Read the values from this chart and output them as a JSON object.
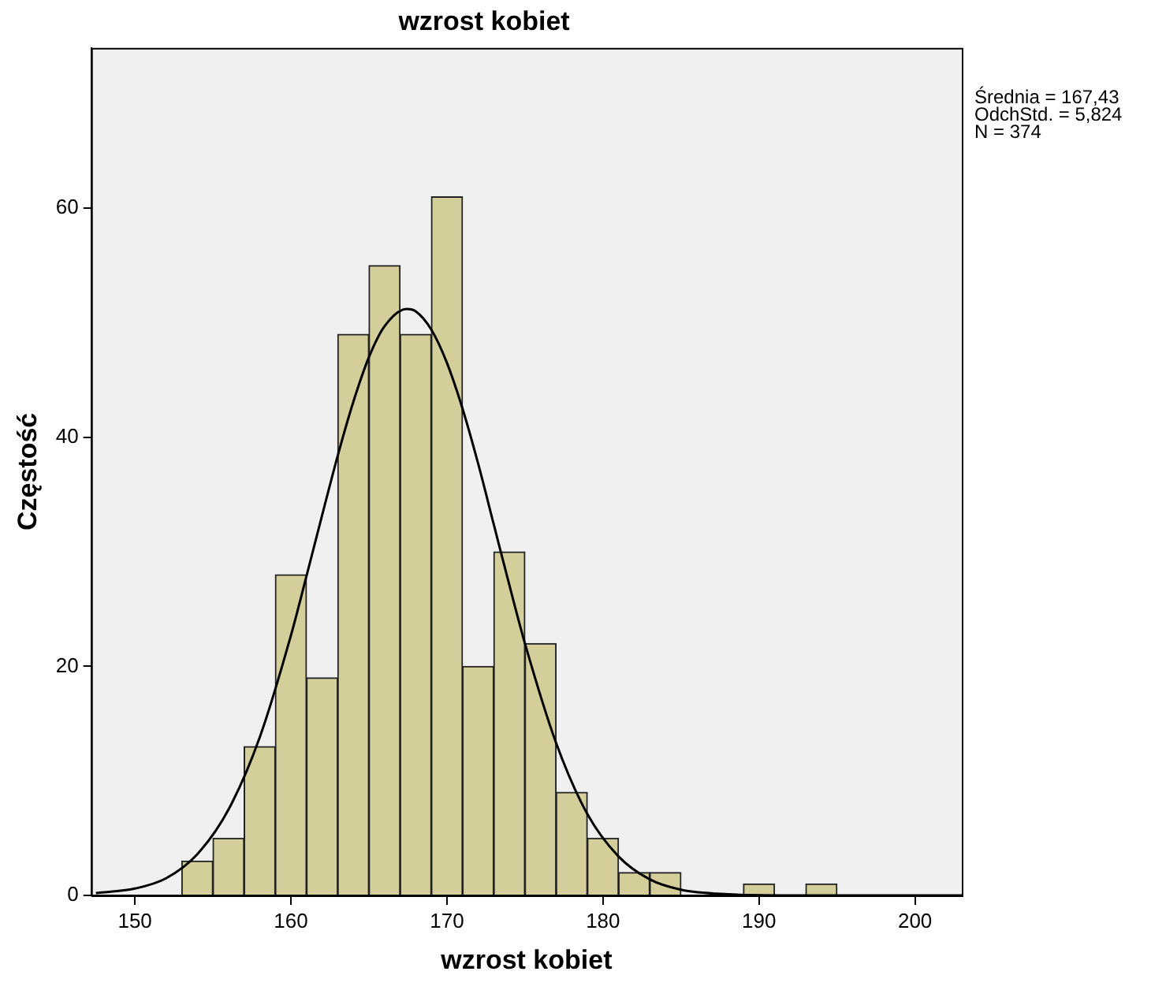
{
  "chart_data": {
    "type": "histogram",
    "title": "wzrost kobiet",
    "xlabel": "wzrost kobiet",
    "ylabel": "Częstość",
    "bins": [
      153,
      155,
      157,
      159,
      161,
      163,
      165,
      167,
      169,
      171,
      173,
      175,
      177,
      179,
      181,
      183,
      185,
      187,
      189,
      191,
      193,
      195
    ],
    "values": [
      3,
      5,
      13,
      28,
      19,
      49,
      55,
      49,
      61,
      20,
      30,
      22,
      9,
      5,
      2,
      2,
      0,
      0,
      1,
      0,
      1
    ],
    "color": "#d3ce9a",
    "series": [
      {
        "type": "line",
        "color": "#000000",
        "x": [
          147.5,
          150,
          152,
          154,
          156,
          158,
          160,
          161,
          162,
          163,
          164,
          165,
          166,
          167.43,
          168,
          169,
          170,
          171,
          172,
          173,
          174,
          175,
          177,
          179,
          181,
          183,
          185,
          188,
          192,
          203
        ],
        "values": [
          0.2,
          0.6,
          1.5,
          3.6,
          7.5,
          13.8,
          22.7,
          27.9,
          33.2,
          38.4,
          43.1,
          47.0,
          49.7,
          51.2,
          51.0,
          49.4,
          46.5,
          42.5,
          37.7,
          32.4,
          27.1,
          22.0,
          13.3,
          7.1,
          3.4,
          1.4,
          0.5,
          0.1,
          0,
          0
        ]
      }
    ],
    "marker": "none",
    "xlim": [
      147.2,
      203
    ],
    "xticks": [
      150,
      160,
      170,
      180,
      190,
      200
    ],
    "ylim": [
      0,
      74
    ],
    "yticks": [
      0,
      20,
      40,
      60
    ],
    "grid": false,
    "legend": false,
    "annotations": [
      "Średnia = 167,43",
      "OdchStd. = 5,824",
      "N = 374"
    ]
  }
}
